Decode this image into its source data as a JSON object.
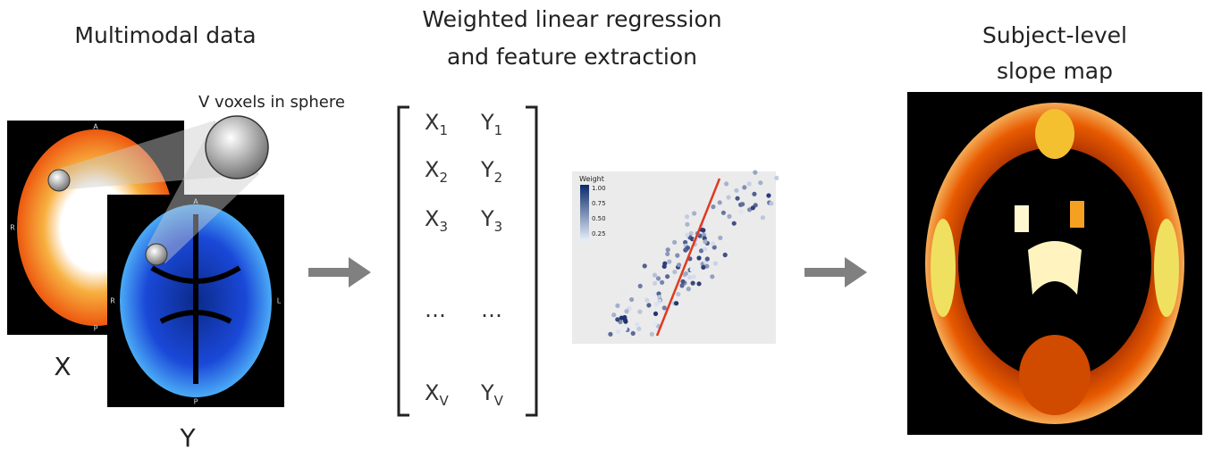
{
  "input": {
    "title": "Multimodal data",
    "sphere_label": "V voxels in sphere",
    "x_label": "X",
    "y_label": "Y",
    "orientation": {
      "anterior": "A",
      "posterior": "P",
      "right": "R",
      "left": "L"
    }
  },
  "regression": {
    "title_lines": [
      "Weighted linear regression",
      "and feature extraction"
    ],
    "matrix": [
      {
        "x": "X",
        "x_sub": "1",
        "y": "Y",
        "y_sub": "1"
      },
      {
        "x": "X",
        "x_sub": "2",
        "y": "Y",
        "y_sub": "2"
      },
      {
        "x": "X",
        "x_sub": "3",
        "y": "Y",
        "y_sub": "3"
      },
      {
        "x": "…",
        "y": "…"
      },
      {
        "x": "X",
        "x_sub": "V",
        "y": "Y",
        "y_sub": "V"
      }
    ],
    "legend_title": "Weight",
    "legend_ticks": [
      "1.00",
      "0.75",
      "0.50",
      "0.25"
    ]
  },
  "output": {
    "title_lines": [
      "Subject-level",
      "slope map"
    ]
  }
}
